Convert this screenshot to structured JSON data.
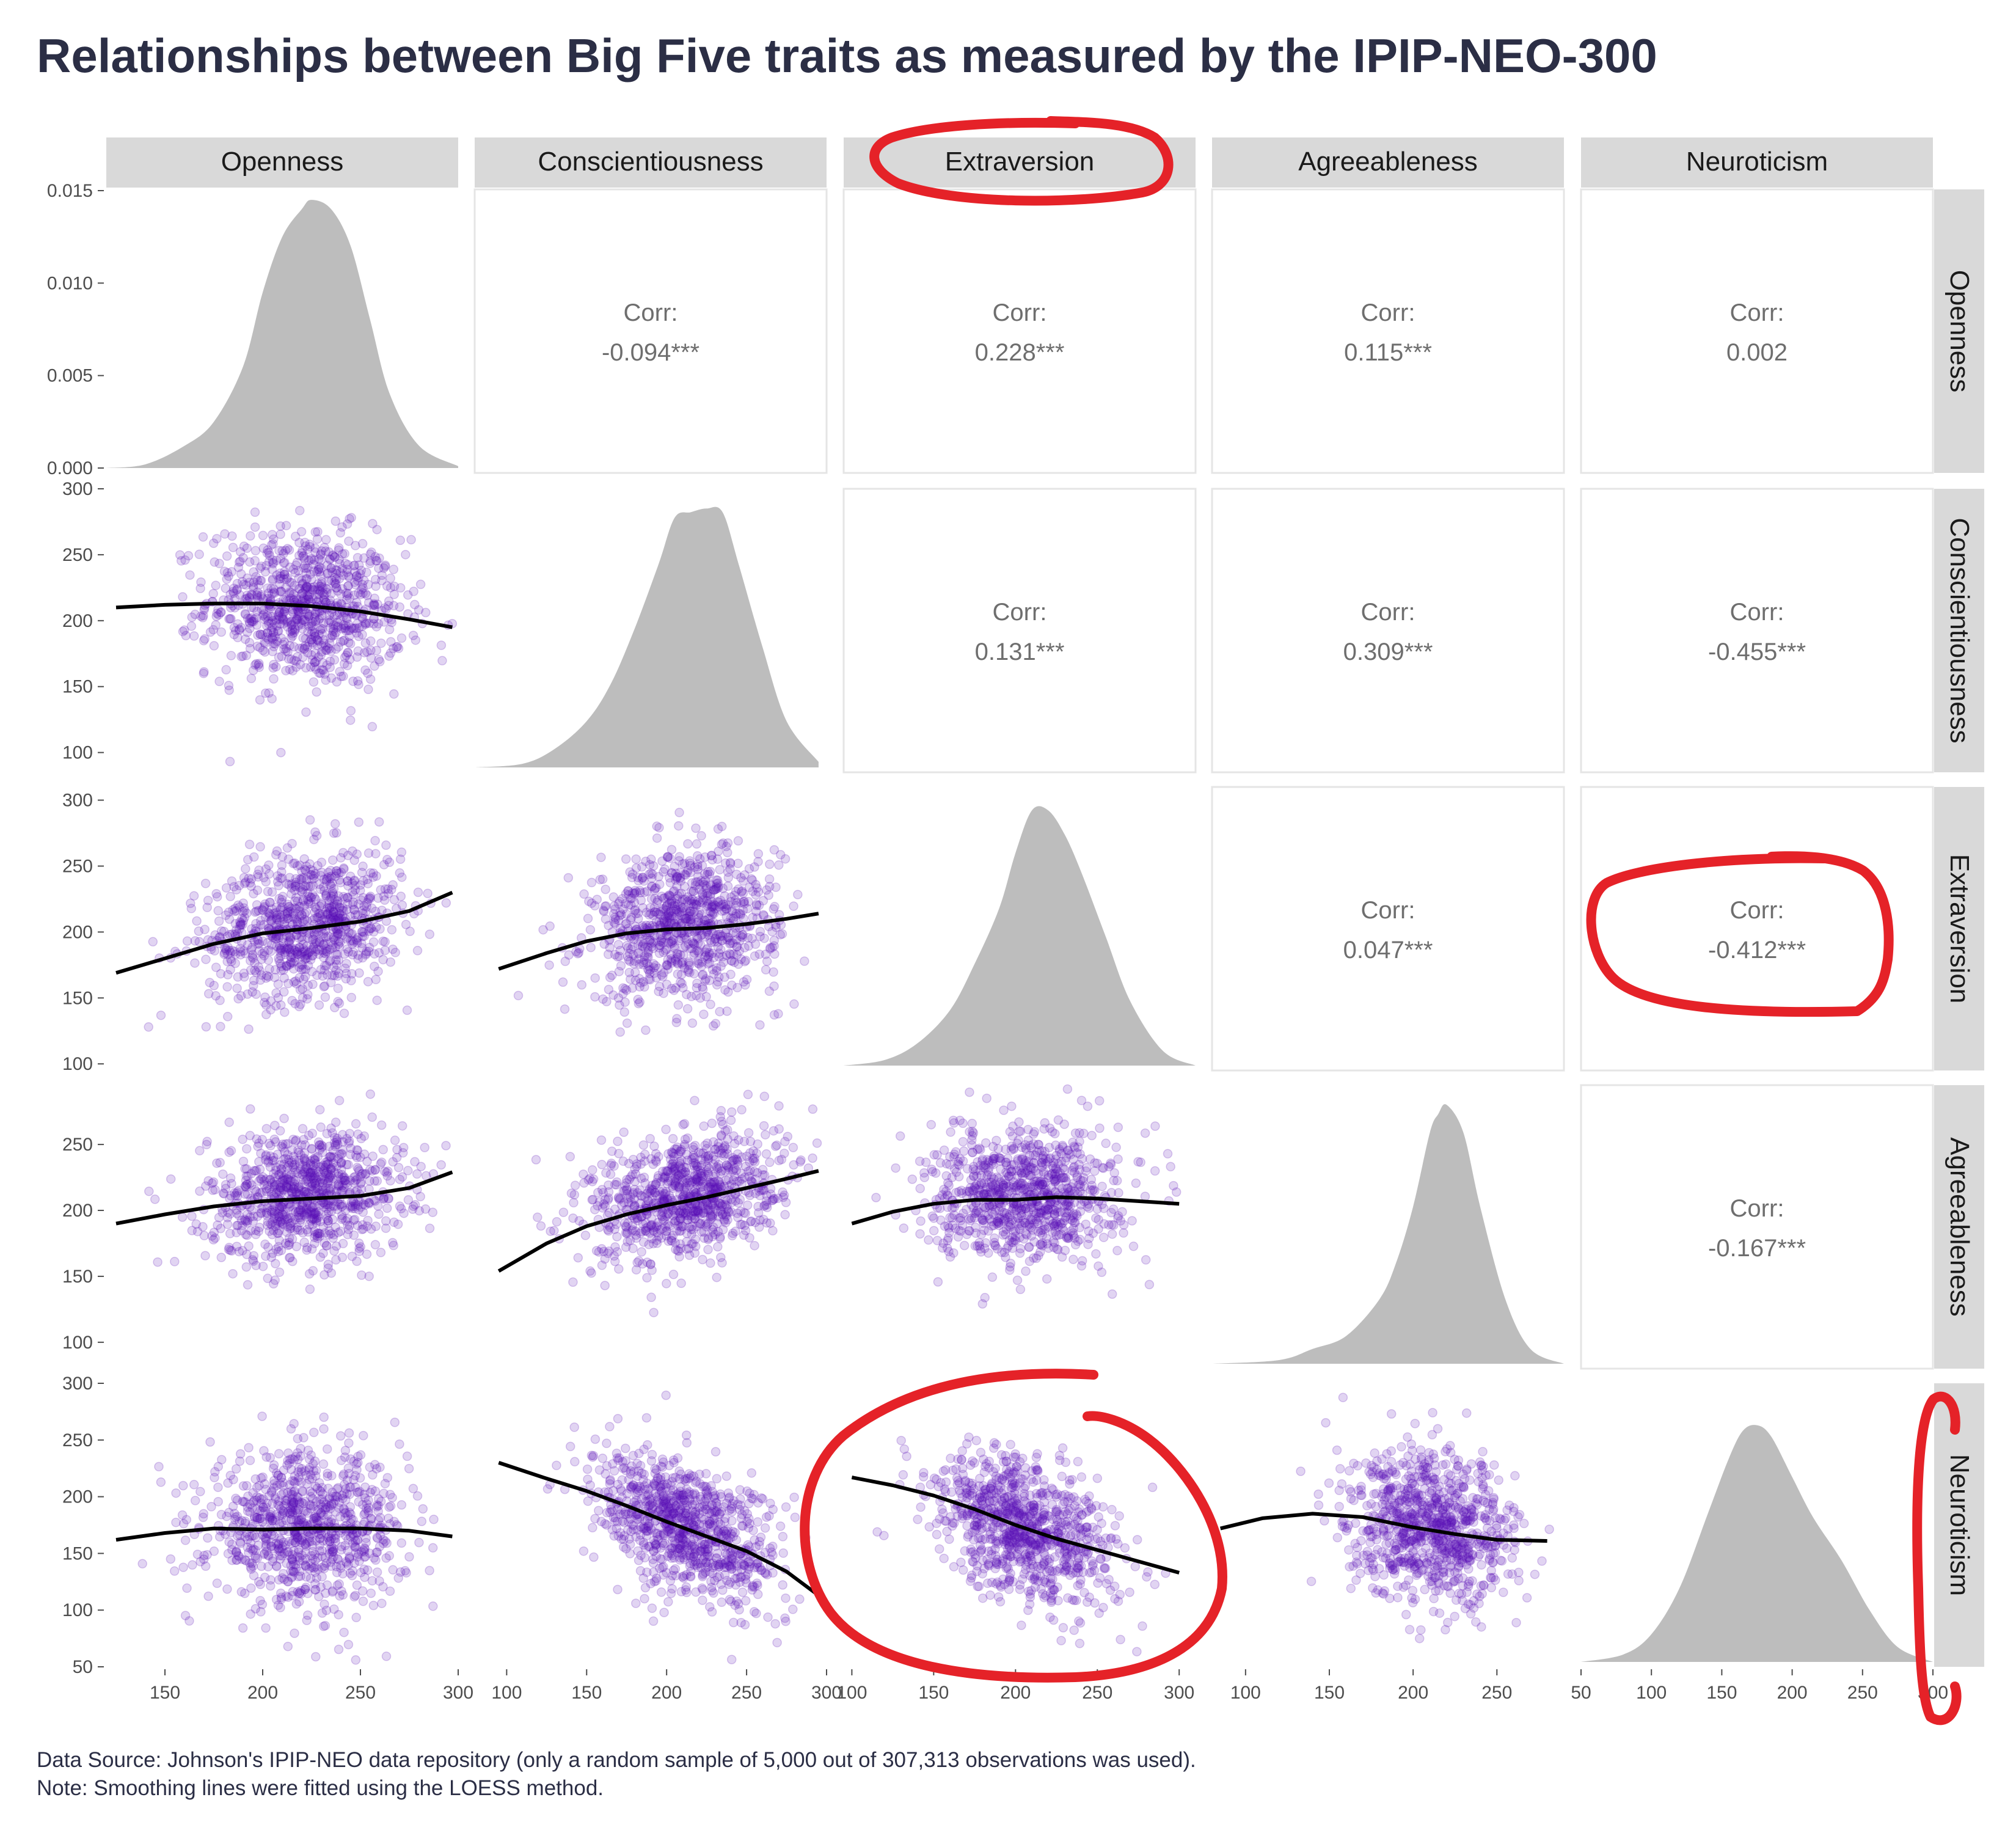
{
  "chart_data": {
    "type": "scatter",
    "title": "Relationships between Big Five traits as measured by the IPIP-NEO-300",
    "variables": [
      "Openness",
      "Conscientiousness",
      "Extraversion",
      "Agreeableness",
      "Neuroticism"
    ],
    "caption_lines": [
      "Data Source: Johnson's IPIP-NEO data repository (only a random sample of 5,000 out of 307,313 observations was used).",
      "Note: Smoothing lines were fitted using the LOESS method."
    ],
    "corr_label": "Corr:",
    "correlations": [
      {
        "row": "Openness",
        "col": "Conscientiousness",
        "text": "-0.094***"
      },
      {
        "row": "Openness",
        "col": "Extraversion",
        "text": "0.228***"
      },
      {
        "row": "Openness",
        "col": "Agreeableness",
        "text": "0.115***"
      },
      {
        "row": "Openness",
        "col": "Neuroticism",
        "text": "0.002"
      },
      {
        "row": "Conscientiousness",
        "col": "Extraversion",
        "text": "0.131***"
      },
      {
        "row": "Conscientiousness",
        "col": "Agreeableness",
        "text": "0.309***"
      },
      {
        "row": "Conscientiousness",
        "col": "Neuroticism",
        "text": "-0.455***"
      },
      {
        "row": "Extraversion",
        "col": "Agreeableness",
        "text": "0.047***"
      },
      {
        "row": "Extraversion",
        "col": "Neuroticism",
        "text": "-0.412***"
      },
      {
        "row": "Agreeableness",
        "col": "Neuroticism",
        "text": "-0.167***"
      }
    ],
    "density_y_axis": {
      "min": 0,
      "max": 0.015,
      "ticks": [
        "0.000",
        "0.005",
        "0.010",
        "0.015"
      ]
    },
    "row_axes": [
      {
        "var": "Conscientiousness",
        "ylim": [
          85,
          300
        ],
        "ticks": [
          "100",
          "150",
          "200",
          "250",
          "300"
        ]
      },
      {
        "var": "Extraversion",
        "ylim": [
          95,
          310
        ],
        "ticks": [
          "100",
          "150",
          "200",
          "250",
          "300"
        ]
      },
      {
        "var": "Agreeableness",
        "ylim": [
          80,
          295
        ],
        "ticks": [
          "100",
          "150",
          "200",
          "250"
        ]
      },
      {
        "var": "Neuroticism",
        "ylim": [
          50,
          300
        ],
        "ticks": [
          "50",
          "100",
          "150",
          "200",
          "250",
          "300"
        ]
      }
    ],
    "col_axes": [
      {
        "var": "Openness",
        "xlim": [
          120,
          300
        ],
        "ticks": [
          "150",
          "200",
          "250",
          "300"
        ]
      },
      {
        "var": "Conscientiousness",
        "xlim": [
          80,
          300
        ],
        "ticks": [
          "100",
          "150",
          "200",
          "250",
          "300"
        ]
      },
      {
        "var": "Extraversion",
        "xlim": [
          95,
          310
        ],
        "ticks": [
          "100",
          "150",
          "200",
          "250",
          "300"
        ]
      },
      {
        "var": "Agreeableness",
        "xlim": [
          80,
          290
        ],
        "ticks": [
          "100",
          "150",
          "200",
          "250"
        ]
      },
      {
        "var": "Neuroticism",
        "xlim": [
          50,
          300
        ],
        "ticks": [
          "50",
          "100",
          "150",
          "200",
          "250",
          "300"
        ]
      }
    ],
    "densities": [
      {
        "var": "Openness",
        "x": [
          120,
          140,
          160,
          175,
          190,
          200,
          210,
          220,
          225,
          235,
          245,
          255,
          265,
          280,
          300
        ],
        "y": [
          0,
          0.0002,
          0.0012,
          0.0025,
          0.0055,
          0.0095,
          0.0125,
          0.014,
          0.0145,
          0.014,
          0.012,
          0.008,
          0.004,
          0.0012,
          0.0001
        ]
      },
      {
        "var": "Conscientiousness",
        "x": [
          80,
          110,
          130,
          150,
          165,
          180,
          195,
          205,
          215,
          225,
          235,
          245,
          260,
          275,
          295
        ],
        "y": [
          0,
          0.0002,
          0.001,
          0.0025,
          0.0045,
          0.0075,
          0.011,
          0.0135,
          0.0138,
          0.014,
          0.0138,
          0.011,
          0.0065,
          0.0025,
          0.0003
        ]
      },
      {
        "var": "Extraversion",
        "x": [
          95,
          120,
          140,
          160,
          175,
          190,
          200,
          210,
          220,
          230,
          240,
          255,
          270,
          290,
          310
        ],
        "y": [
          0,
          0.0003,
          0.0012,
          0.003,
          0.0055,
          0.0085,
          0.0115,
          0.0138,
          0.0138,
          0.0125,
          0.0105,
          0.007,
          0.0035,
          0.0008,
          0
        ]
      },
      {
        "var": "Agreeableness",
        "x": [
          80,
          120,
          140,
          160,
          180,
          190,
          200,
          210,
          215,
          220,
          230,
          240,
          255,
          270,
          290
        ],
        "y": [
          0,
          0.0002,
          0.0008,
          0.0015,
          0.0035,
          0.0055,
          0.0085,
          0.0125,
          0.0135,
          0.014,
          0.0125,
          0.0085,
          0.0035,
          0.0008,
          0
        ]
      },
      {
        "var": "Neuroticism",
        "x": [
          50,
          80,
          100,
          120,
          140,
          155,
          165,
          175,
          185,
          200,
          215,
          235,
          255,
          275,
          300
        ],
        "y": [
          0,
          0.0004,
          0.0015,
          0.004,
          0.008,
          0.011,
          0.0125,
          0.0128,
          0.0122,
          0.01,
          0.0078,
          0.0055,
          0.0028,
          0.0008,
          0
        ]
      }
    ],
    "scatter_cells": [
      {
        "row": "Conscientiousness",
        "col": "Openness",
        "xmean": 222,
        "xsd": 25,
        "ymean": 210,
        "ysd": 29,
        "r": -0.094,
        "loess": {
          "x": [
            125,
            150,
            175,
            200,
            225,
            250,
            275,
            297
          ],
          "y": [
            210,
            212,
            213,
            213,
            211,
            207,
            201,
            195
          ]
        }
      },
      {
        "row": "Extraversion",
        "col": "Openness",
        "xmean": 222,
        "xsd": 25,
        "ymean": 206,
        "ysd": 28,
        "r": 0.228,
        "loess": {
          "x": [
            125,
            150,
            175,
            200,
            225,
            250,
            275,
            297
          ],
          "y": [
            169,
            180,
            191,
            199,
            203,
            208,
            216,
            230
          ]
        }
      },
      {
        "row": "Agreeableness",
        "col": "Openness",
        "xmean": 222,
        "xsd": 25,
        "ymean": 212,
        "ysd": 25,
        "r": 0.115,
        "loess": {
          "x": [
            125,
            150,
            175,
            200,
            225,
            250,
            275,
            297
          ],
          "y": [
            190,
            197,
            203,
            207,
            209,
            211,
            217,
            229
          ]
        }
      },
      {
        "row": "Neuroticism",
        "col": "Openness",
        "xmean": 222,
        "xsd": 25,
        "ymean": 172,
        "ysd": 33,
        "r": 0.002,
        "loess": {
          "x": [
            125,
            150,
            175,
            200,
            225,
            250,
            275,
            297
          ],
          "y": [
            162,
            168,
            172,
            171,
            172,
            172,
            170,
            165
          ]
        }
      },
      {
        "row": "Extraversion",
        "col": "Conscientiousness",
        "xmean": 212,
        "xsd": 29,
        "ymean": 206,
        "ysd": 28,
        "r": 0.131,
        "loess": {
          "x": [
            95,
            125,
            150,
            175,
            200,
            225,
            250,
            275,
            295
          ],
          "y": [
            172,
            184,
            193,
            199,
            202,
            203,
            206,
            210,
            214
          ]
        }
      },
      {
        "row": "Agreeableness",
        "col": "Conscientiousness",
        "xmean": 212,
        "xsd": 29,
        "ymean": 212,
        "ysd": 25,
        "r": 0.309,
        "loess": {
          "x": [
            95,
            125,
            150,
            175,
            200,
            225,
            250,
            275,
            295
          ],
          "y": [
            154,
            175,
            188,
            197,
            204,
            210,
            217,
            224,
            230
          ]
        }
      },
      {
        "row": "Neuroticism",
        "col": "Conscientiousness",
        "xmean": 212,
        "xsd": 29,
        "ymean": 172,
        "ysd": 33,
        "r": -0.455,
        "loess": {
          "x": [
            95,
            125,
            150,
            175,
            200,
            225,
            250,
            275,
            295
          ],
          "y": [
            230,
            216,
            205,
            192,
            178,
            165,
            152,
            134,
            113
          ]
        }
      },
      {
        "row": "Agreeableness",
        "col": "Extraversion",
        "xmean": 206,
        "xsd": 28,
        "ymean": 212,
        "ysd": 25,
        "r": 0.047,
        "loess": {
          "x": [
            100,
            125,
            150,
            175,
            200,
            225,
            250,
            275,
            300
          ],
          "y": [
            190,
            199,
            205,
            208,
            208,
            210,
            209,
            207,
            205
          ]
        }
      },
      {
        "row": "Neuroticism",
        "col": "Extraversion",
        "xmean": 206,
        "xsd": 28,
        "ymean": 172,
        "ysd": 33,
        "r": -0.412,
        "loess": {
          "x": [
            100,
            125,
            150,
            175,
            200,
            225,
            250,
            275,
            300
          ],
          "y": [
            217,
            210,
            201,
            189,
            175,
            163,
            153,
            143,
            133
          ]
        }
      },
      {
        "row": "Neuroticism",
        "col": "Agreeableness",
        "xmean": 212,
        "xsd": 25,
        "ymean": 172,
        "ysd": 33,
        "r": -0.167,
        "loess": {
          "x": [
            85,
            110,
            140,
            170,
            200,
            225,
            250,
            280
          ],
          "y": [
            172,
            181,
            185,
            182,
            173,
            167,
            162,
            161
          ]
        }
      }
    ],
    "colors": {
      "points": "#5a0fb5",
      "density_fill": "#bdbdbd",
      "strip_bg": "#d9d9d9",
      "panel_border": "#e5e5e5",
      "smooth_line": "#000000",
      "annotation": "#e52228"
    },
    "annotations": "red hand-drawn circles around Extraversion strip, Corr -0.412***, Neuroticism vs Extraversion scatter, and Neuroticism row strip"
  }
}
